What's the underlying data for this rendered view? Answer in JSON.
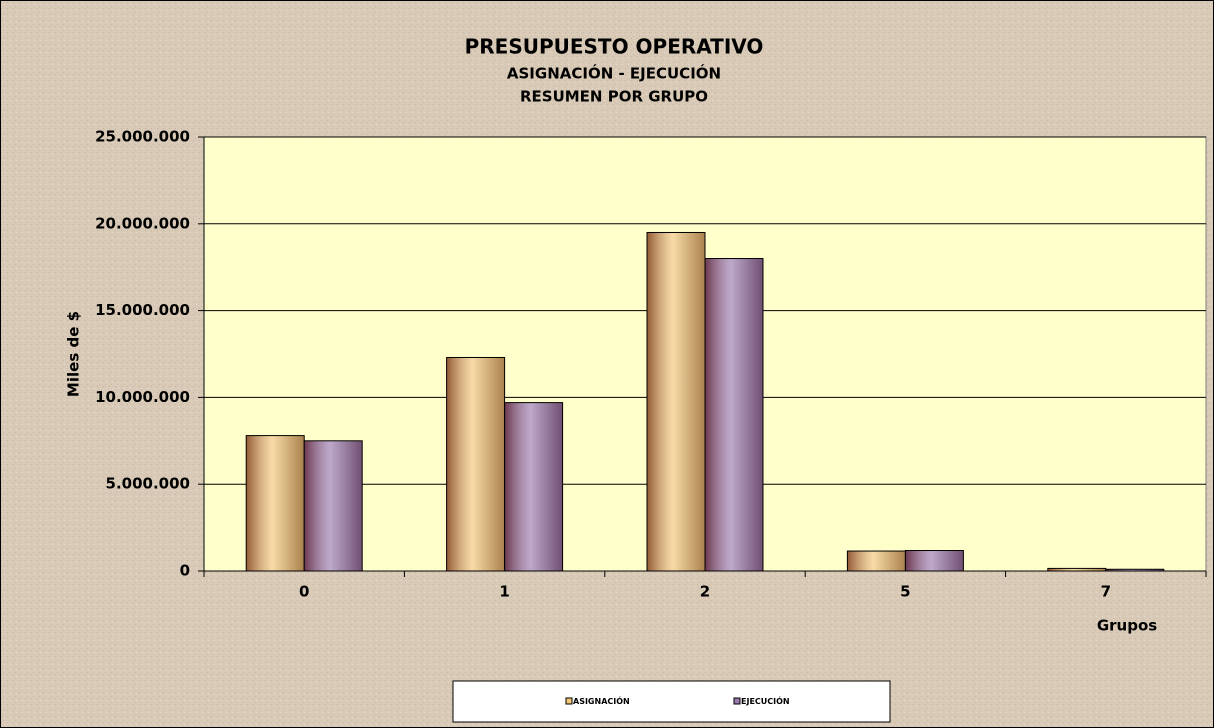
{
  "chart_data": {
    "type": "bar",
    "title": "PRESUPUESTO OPERATIVO",
    "subtitle": [
      "ASIGNACIÓN - EJECUCIÓN",
      "RESUMEN POR GRUPO"
    ],
    "y_label": "Miles de $",
    "x_label": "Grupos",
    "categories": [
      "0",
      "1",
      "2",
      "5",
      "7"
    ],
    "series": [
      {
        "name": "ASIGNACIÓN",
        "color": "#f3c776",
        "values": [
          7800000,
          12300000,
          19500000,
          1150000,
          150000
        ]
      },
      {
        "name": "EJECUCIÓN",
        "color": "#9a7aae",
        "values": [
          7500000,
          9700000,
          18000000,
          1180000,
          100000
        ]
      }
    ],
    "ylim": [
      0,
      25000000
    ],
    "yticks": [
      0,
      {
        "value": 5000000,
        "label": "5.000.000"
      },
      {
        "value": 10000000,
        "label": "10.000.000"
      },
      {
        "value": 15000000,
        "label": "15.000.000"
      },
      {
        "value": 20000000,
        "label": "20.000.000"
      },
      {
        "value": 25000000,
        "label": "25.000.000"
      }
    ],
    "grid": true,
    "legend": "bottom"
  }
}
